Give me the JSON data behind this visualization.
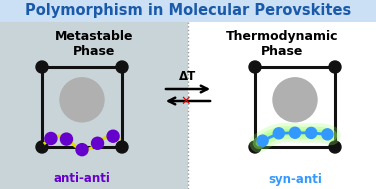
{
  "title": "Polymorphism in Molecular Perovskites",
  "title_color": "#1a5aaa",
  "title_bg_color": "#cce0f5",
  "left_bg_color": "#c8d4d8",
  "right_bg_color": "#ffffff",
  "left_label": "Metastable\nPhase",
  "right_label": "Thermodynamic\nPhase",
  "left_molecule_label": "anti-anti",
  "right_molecule_label": "syn-anti",
  "left_mol_color": "#6600cc",
  "right_mol_color": "#3399ff",
  "arrow_label": "ΔT",
  "corner_color": "#111111",
  "line_color": "#111111",
  "sphere_color": "#b0b0b0",
  "yellow_line_color": "#dddd00",
  "green_glow_color": "#99ff66",
  "figw": 3.76,
  "figh": 1.89,
  "dpi": 100
}
